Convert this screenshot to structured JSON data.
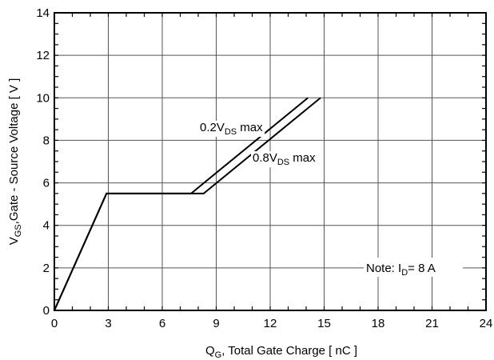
{
  "chart_data": {
    "type": "line",
    "xlabel": {
      "main": "Q",
      "sub": "G",
      "rest": ", Total Gate Charge [ nC ]"
    },
    "ylabel": {
      "main": "V",
      "sub": "GS",
      "rest": ",Gate - Source Voltage [ V ]"
    },
    "xlim": [
      0,
      24
    ],
    "ylim": [
      0,
      14
    ],
    "xticks": [
      0,
      3,
      6,
      9,
      12,
      15,
      18,
      21,
      24
    ],
    "yticks": [
      0,
      2,
      4,
      6,
      8,
      10,
      12,
      14
    ],
    "xtick_labels": [
      "0",
      "3",
      "6",
      "9",
      "12",
      "15",
      "18",
      "21",
      "24"
    ],
    "ytick_labels": [
      "0",
      "2",
      "4",
      "6",
      "8",
      "10",
      "12",
      "14"
    ],
    "grid": true,
    "series": [
      {
        "name": "0.2V_DS max",
        "x": [
          0,
          2.9,
          7.6,
          14.1
        ],
        "y": [
          0,
          5.5,
          5.5,
          10.0
        ]
      },
      {
        "name": "0.8V_DS max",
        "x": [
          0,
          2.9,
          8.3,
          14.8
        ],
        "y": [
          0,
          5.5,
          5.5,
          10.0
        ]
      }
    ],
    "series_labels": [
      {
        "main": "0.2V",
        "sub": "DS",
        "rest": " max"
      },
      {
        "main": "0.8V",
        "sub": "DS",
        "rest": " max"
      }
    ],
    "note": {
      "prefix": "Note: I",
      "sub": "D",
      "rest": "=   8   A"
    }
  }
}
